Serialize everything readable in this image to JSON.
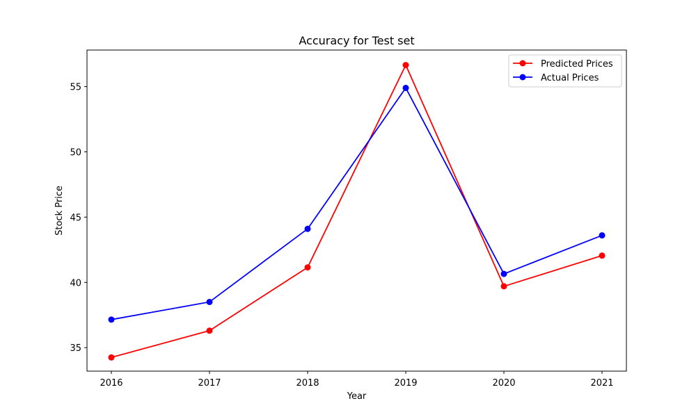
{
  "chart_data": {
    "type": "line",
    "title": "Accuracy for Test set",
    "xlabel": "Year",
    "ylabel": "Stock Price",
    "x": [
      "2016",
      "2017",
      "2018",
      "2019",
      "2020",
      "2021"
    ],
    "ylim": [
      33.2,
      57.8
    ],
    "yticks": [
      35,
      40,
      45,
      50,
      55
    ],
    "grid": false,
    "legend_position": "top-right",
    "series": [
      {
        "name": "Predicted Prices",
        "color": "#ff0000",
        "values": [
          34.25,
          36.3,
          41.15,
          56.65,
          39.7,
          42.05
        ]
      },
      {
        "name": "Actual Prices",
        "color": "#0000ff",
        "values": [
          37.15,
          38.5,
          44.1,
          54.9,
          40.65,
          43.6
        ]
      }
    ]
  }
}
